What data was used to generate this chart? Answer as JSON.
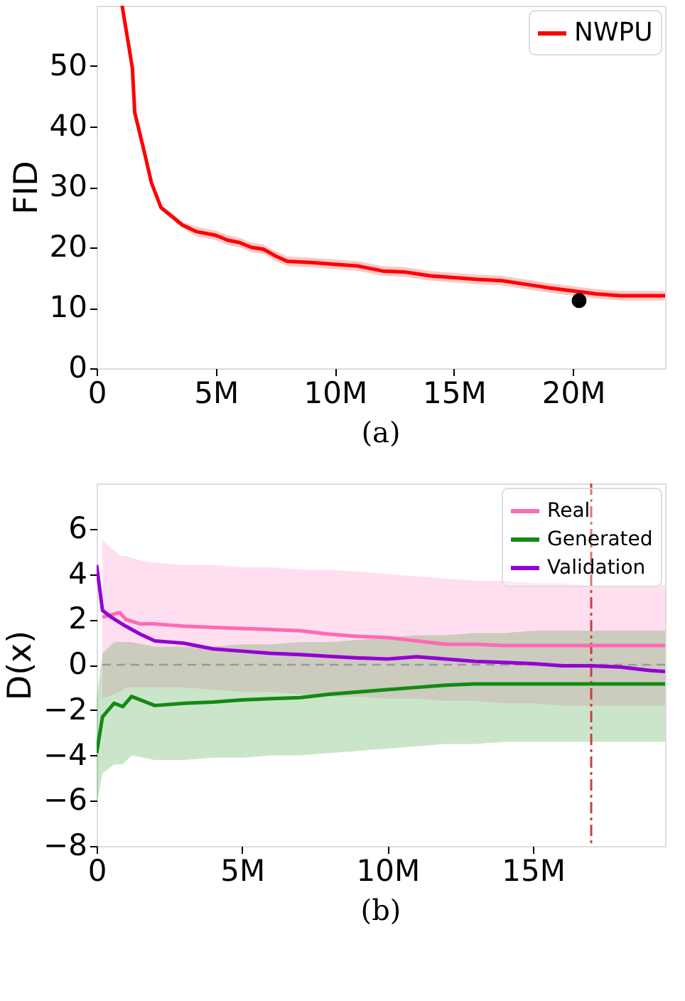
{
  "chart_data": [
    {
      "type": "line",
      "ylabel": "FID",
      "annotations": [
        "(a)"
      ],
      "xlim": [
        0,
        23860000
      ],
      "ylim": [
        0,
        60
      ],
      "xticks": [
        0,
        {
          "value": 5000000,
          "label": "5M"
        },
        {
          "value": 10000000,
          "label": "10M"
        },
        {
          "value": 15000000,
          "label": "15M"
        },
        {
          "value": 20000000,
          "label": "20M"
        }
      ],
      "yticks": [
        0,
        10,
        20,
        30,
        40,
        50
      ],
      "grid": false,
      "legend": "top right",
      "series": [
        {
          "name": "NWPU",
          "color": "#ff0000",
          "type": "line",
          "x": [
            1070000,
            1500000,
            1600000,
            2000000,
            2300000,
            2700000,
            3200000,
            3600000,
            4200000,
            5000000,
            5500000,
            6000000,
            6500000,
            7000000,
            7500000,
            8000000,
            9000000,
            10000000,
            11000000,
            12000000,
            13000000,
            14000000,
            15000000,
            16000000,
            17000000,
            18000000,
            19000000,
            20000000,
            21000000,
            22000000,
            23000000,
            23860000
          ],
          "values": [
            60,
            49.7,
            42.3,
            35.8,
            30.7,
            26.6,
            25,
            23.7,
            22.6,
            22,
            21.2,
            20.8,
            20,
            19.7,
            18.6,
            17.7,
            17.5,
            17.2,
            16.9,
            16.1,
            15.9,
            15.3,
            15,
            14.7,
            14.5,
            13.9,
            13.3,
            12.8,
            12.3,
            12,
            12,
            12
          ],
          "lower": [
            59.5,
            49.2,
            41.8,
            35.3,
            30.2,
            26.1,
            24.5,
            23.2,
            21.8,
            21.2,
            20.4,
            20,
            19.2,
            18.9,
            17.8,
            16.9,
            16.7,
            16.4,
            16.1,
            15.3,
            15.1,
            14.5,
            14.2,
            13.9,
            13.7,
            13.1,
            12.5,
            12,
            11.5,
            11.2,
            11.2,
            11.2
          ],
          "upper": [
            60,
            50.2,
            42.8,
            36.3,
            31.2,
            27.1,
            25.5,
            24.2,
            23.4,
            22.8,
            22,
            21.6,
            20.8,
            20.5,
            19.4,
            18.5,
            18.3,
            18,
            17.7,
            16.9,
            16.7,
            16.1,
            15.8,
            15.5,
            15.3,
            14.7,
            14.1,
            13.6,
            13.1,
            12.8,
            12.8,
            12.8
          ]
        },
        {
          "color": "#000000",
          "type": "scatter",
          "x": [
            20250000
          ],
          "values": [
            11.2
          ]
        }
      ]
    },
    {
      "type": "line",
      "ylabel": "D(x)",
      "annotations": [
        "(b)"
      ],
      "xlim": [
        0,
        19540000
      ],
      "ylim": [
        -8,
        8
      ],
      "xticks": [
        0,
        {
          "value": 5000000,
          "label": "5M"
        },
        {
          "value": 10000000,
          "label": "10M"
        },
        {
          "value": 15000000,
          "label": "15M"
        }
      ],
      "yticks": [
        {
          "value": -8,
          "label": "−8"
        },
        {
          "value": -6,
          "label": "−6"
        },
        {
          "value": -4,
          "label": "−4"
        },
        {
          "value": -2,
          "label": "−2"
        },
        0,
        2,
        4,
        6
      ],
      "grid": false,
      "legend": "top right",
      "ref_lines": [
        {
          "axis": "y",
          "value": 0,
          "color": "#999999",
          "line_style": "dashed"
        },
        {
          "axis": "x",
          "value": 17000000,
          "color": "#c94040",
          "line_style": "dashdot"
        }
      ],
      "series": [
        {
          "name": "Real",
          "color": "#ff69b4",
          "type": "line",
          "x": [
            200000,
            800000,
            1000000,
            1500000,
            2000000,
            3000000,
            4000000,
            5000000,
            6000000,
            7000000,
            8000000,
            9000000,
            10000000,
            11000000,
            12000000,
            13000000,
            14000000,
            15000000,
            16000000,
            17000000,
            18000000,
            19540000
          ],
          "values": [
            2.1,
            2.3,
            2.0,
            1.8,
            1.8,
            1.7,
            1.65,
            1.6,
            1.55,
            1.5,
            1.35,
            1.25,
            1.2,
            1.05,
            0.9,
            0.9,
            0.85,
            0.85,
            0.85,
            0.85,
            0.85,
            0.85
          ],
          "lower": [
            -1.5,
            -1.2,
            -1.0,
            -1.0,
            -1.0,
            -1.0,
            -1.1,
            -1.2,
            -1.2,
            -1.3,
            -1.4,
            -1.4,
            -1.5,
            -1.5,
            -1.6,
            -1.6,
            -1.7,
            -1.7,
            -1.8,
            -1.8,
            -1.8,
            -1.8
          ],
          "upper": [
            5.5,
            4.8,
            4.8,
            4.6,
            4.5,
            4.4,
            4.4,
            4.3,
            4.3,
            4.2,
            4.2,
            4.1,
            4.0,
            3.9,
            3.8,
            3.7,
            3.7,
            3.6,
            3.6,
            3.5,
            3.5,
            3.5
          ]
        },
        {
          "name": "Generated",
          "color": "#138a13",
          "type": "line",
          "x": [
            0,
            200000,
            600000,
            900000,
            1200000,
            2000000,
            3000000,
            4000000,
            5000000,
            6000000,
            7000000,
            8000000,
            9000000,
            10000000,
            11000000,
            12000000,
            13000000,
            14000000,
            15000000,
            16000000,
            17000000,
            18000000,
            19540000
          ],
          "values": [
            -3.9,
            -2.3,
            -1.7,
            -1.85,
            -1.4,
            -1.8,
            -1.7,
            -1.65,
            -1.55,
            -1.5,
            -1.45,
            -1.3,
            -1.2,
            -1.1,
            -1.0,
            -0.9,
            -0.85,
            -0.85,
            -0.85,
            -0.85,
            -0.85,
            -0.85,
            -0.85
          ],
          "lower": [
            -6.2,
            -4.8,
            -4.4,
            -4.4,
            -4.0,
            -4.2,
            -4.2,
            -4.1,
            -4.1,
            -4.0,
            -4.0,
            -3.9,
            -3.8,
            -3.7,
            -3.6,
            -3.5,
            -3.5,
            -3.4,
            -3.4,
            -3.4,
            -3.4,
            -3.4,
            -3.4
          ],
          "upper": [
            -1.5,
            0.5,
            1.0,
            1.0,
            1.0,
            0.8,
            0.8,
            0.8,
            0.9,
            0.9,
            1.0,
            1.0,
            1.1,
            1.2,
            1.3,
            1.3,
            1.4,
            1.4,
            1.5,
            1.5,
            1.5,
            1.5,
            1.5
          ]
        },
        {
          "name": "Validation",
          "color": "#9400d3",
          "type": "line",
          "x": [
            0,
            200000,
            500000,
            1000000,
            1500000,
            2000000,
            3000000,
            4000000,
            5000000,
            6000000,
            7000000,
            8000000,
            9000000,
            10000000,
            11000000,
            12000000,
            13000000,
            14000000,
            15000000,
            16000000,
            17000000,
            18000000,
            19000000,
            19540000
          ],
          "values": [
            4.4,
            2.4,
            2.1,
            1.7,
            1.35,
            1.05,
            0.95,
            0.7,
            0.6,
            0.5,
            0.45,
            0.37,
            0.3,
            0.25,
            0.35,
            0.25,
            0.15,
            0.1,
            0.05,
            -0.05,
            -0.05,
            -0.1,
            -0.25,
            -0.3
          ]
        }
      ]
    }
  ]
}
